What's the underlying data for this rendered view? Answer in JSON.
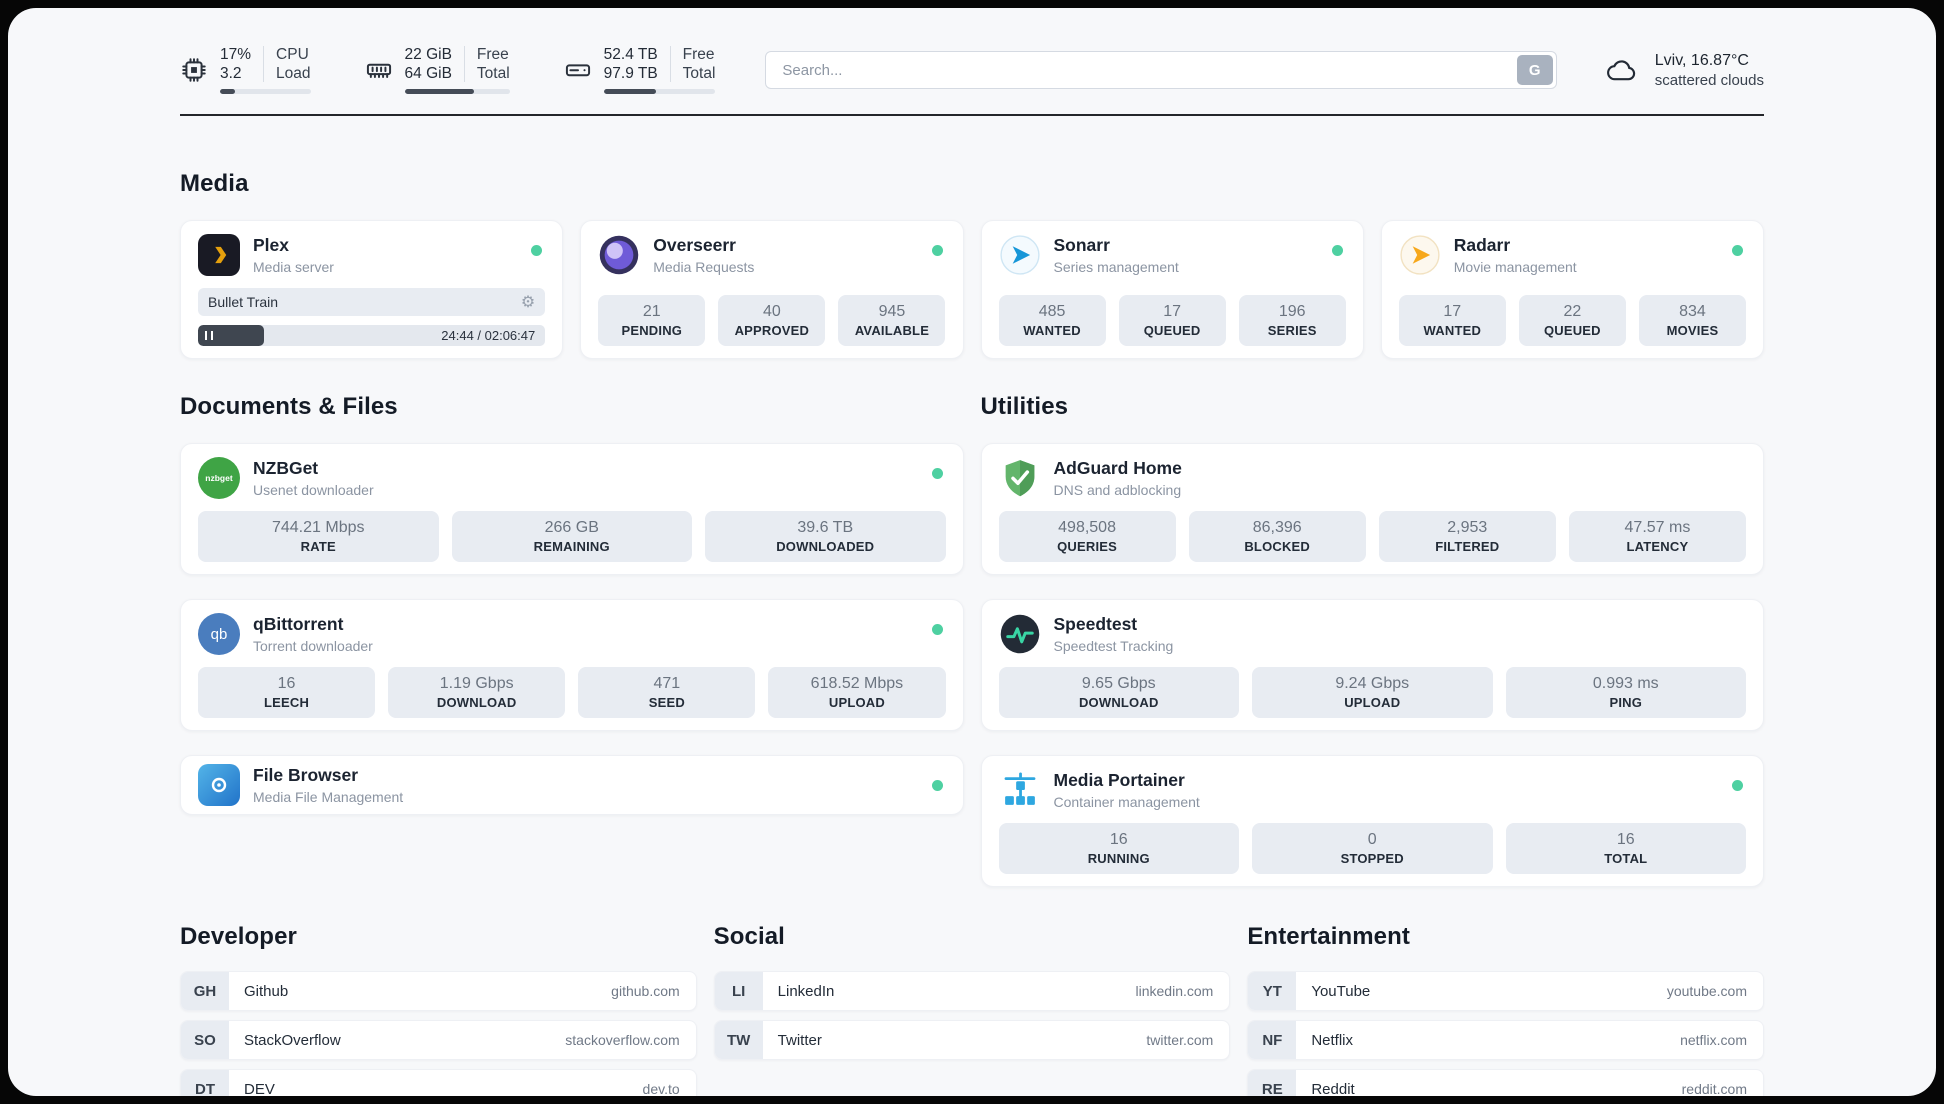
{
  "topbar": {
    "cpu": {
      "value": "17%",
      "value2": "3.2",
      "label": "CPU",
      "label2": "Load",
      "bar_percent": 17
    },
    "ram": {
      "value": "22 GiB",
      "value2": "64 GiB",
      "label": "Free",
      "label2": "Total",
      "bar_percent": 66
    },
    "disk": {
      "value": "52.4 TB",
      "value2": "97.9 TB",
      "label": "Free",
      "label2": "Total",
      "bar_percent": 47
    },
    "search": {
      "placeholder": "Search...",
      "button_label": "G"
    },
    "weather": {
      "location": "Lviv, 16.87°C",
      "condition": "scattered clouds"
    }
  },
  "section_titles": {
    "media": "Media",
    "documents": "Documents & Files",
    "utilities": "Utilities",
    "developer": "Developer",
    "social": "Social",
    "entertainment": "Entertainment"
  },
  "icons": {
    "gear": "⚙"
  },
  "apps": {
    "plex": {
      "name": "Plex",
      "subtitle": "Media server",
      "now_playing": "Bullet Train",
      "time": "24:44 / 02:06:47",
      "progress_percent": 19
    },
    "overseerr": {
      "name": "Overseerr",
      "subtitle": "Media Requests",
      "stats": [
        {
          "value": "21",
          "label": "PENDING"
        },
        {
          "value": "40",
          "label": "APPROVED"
        },
        {
          "value": "945",
          "label": "AVAILABLE"
        }
      ]
    },
    "sonarr": {
      "name": "Sonarr",
      "subtitle": "Series management",
      "stats": [
        {
          "value": "485",
          "label": "WANTED"
        },
        {
          "value": "17",
          "label": "QUEUED"
        },
        {
          "value": "196",
          "label": "SERIES"
        }
      ]
    },
    "radarr": {
      "name": "Radarr",
      "subtitle": "Movie management",
      "stats": [
        {
          "value": "17",
          "label": "WANTED"
        },
        {
          "value": "22",
          "label": "QUEUED"
        },
        {
          "value": "834",
          "label": "MOVIES"
        }
      ]
    },
    "nzbget": {
      "name": "NZBGet",
      "subtitle": "Usenet downloader",
      "icon_label": "nzbget",
      "stats": [
        {
          "value": "744.21 Mbps",
          "label": "RATE"
        },
        {
          "value": "266 GB",
          "label": "REMAINING"
        },
        {
          "value": "39.6 TB",
          "label": "DOWNLOADED"
        }
      ]
    },
    "qbittorrent": {
      "name": "qBittorrent",
      "subtitle": "Torrent downloader",
      "icon_label": "qb",
      "stats": [
        {
          "value": "16",
          "label": "LEECH"
        },
        {
          "value": "1.19 Gbps",
          "label": "DOWNLOAD"
        },
        {
          "value": "471",
          "label": "SEED"
        },
        {
          "value": "618.52 Mbps",
          "label": "UPLOAD"
        }
      ]
    },
    "filebrowser": {
      "name": "File Browser",
      "subtitle": "Media File Management"
    },
    "adguard": {
      "name": "AdGuard Home",
      "subtitle": "DNS and adblocking",
      "stats": [
        {
          "value": "498,508",
          "label": "QUERIES"
        },
        {
          "value": "86,396",
          "label": "BLOCKED"
        },
        {
          "value": "2,953",
          "label": "FILTERED"
        },
        {
          "value": "47.57 ms",
          "label": "LATENCY"
        }
      ]
    },
    "speedtest": {
      "name": "Speedtest",
      "subtitle": "Speedtest Tracking",
      "stats": [
        {
          "value": "9.65 Gbps",
          "label": "DOWNLOAD"
        },
        {
          "value": "9.24 Gbps",
          "label": "UPLOAD"
        },
        {
          "value": "0.993 ms",
          "label": "PING"
        }
      ]
    },
    "portainer": {
      "name": "Media Portainer",
      "subtitle": "Container management",
      "stats": [
        {
          "value": "16",
          "label": "RUNNING"
        },
        {
          "value": "0",
          "label": "STOPPED"
        },
        {
          "value": "16",
          "label": "TOTAL"
        }
      ]
    }
  },
  "bookmarks": {
    "developer": [
      {
        "abbr": "GH",
        "name": "Github",
        "url": "github.com"
      },
      {
        "abbr": "SO",
        "name": "StackOverflow",
        "url": "stackoverflow.com"
      },
      {
        "abbr": "DT",
        "name": "DEV",
        "url": "dev.to"
      }
    ],
    "social": [
      {
        "abbr": "LI",
        "name": "LinkedIn",
        "url": "linkedin.com"
      },
      {
        "abbr": "TW",
        "name": "Twitter",
        "url": "twitter.com"
      }
    ],
    "entertainment": [
      {
        "abbr": "YT",
        "name": "YouTube",
        "url": "youtube.com"
      },
      {
        "abbr": "NF",
        "name": "Netflix",
        "url": "netflix.com"
      },
      {
        "abbr": "RE",
        "name": "Reddit",
        "url": "reddit.com"
      }
    ]
  },
  "colors": {
    "status_online": "#4ed0a1",
    "accent_plex": "#e5a00d",
    "accent_sonarr": "#1796d8",
    "accent_radarr": "#f7a81b",
    "accent_adguard": "#63b56b",
    "accent_speedtest": "#39d6a5",
    "accent_portainer": "#2ea7e0"
  }
}
